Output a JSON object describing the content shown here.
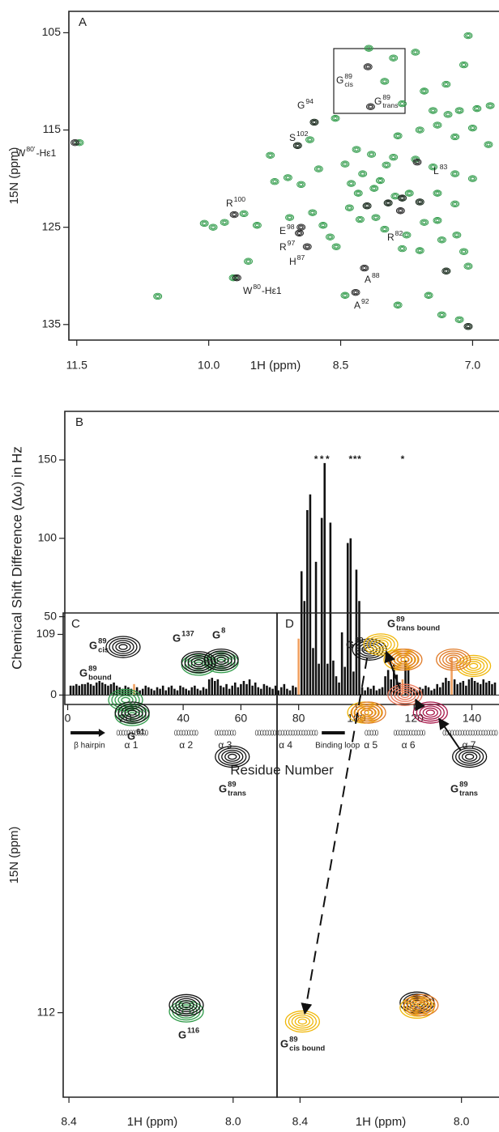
{
  "chart_data": [
    {
      "type": "scatter",
      "panel_label": "A",
      "xlabel": "1H (ppm)",
      "ylabel": "15N (ppm)",
      "xlim": [
        11.59,
        6.7
      ],
      "ylim": [
        136.6,
        102.8
      ],
      "xticks": [
        11.5,
        {
          "value": 10,
          "label": "10.0"
        },
        8.5,
        {
          "value": 7,
          "label": "7.0"
        }
      ],
      "yticks": [
        105,
        115,
        125,
        135
      ],
      "series": [
        {
          "color": "#2e9a48",
          "x": [
            11.47,
            10.58,
            9.82,
            9.72,
            8.99,
            8.8,
            8.56,
            8.45,
            8.38,
            8.3,
            8.2,
            8.12,
            8.05,
            7.96,
            7.88,
            7.8,
            7.72,
            8.25,
            8.32,
            8.15,
            7.98,
            7.9,
            8.4,
            8.28,
            8.1,
            8.0,
            7.75,
            7.6,
            7.55,
            7.4,
            7.35,
            7.18,
            7.1,
            7.05,
            7.3,
            7.6,
            7.8,
            8.55,
            8.62,
            8.7,
            8.82,
            8.95,
            9.1,
            9.3,
            9.45,
            9.08,
            8.18,
            7.9,
            7.65,
            7.05,
            7.1,
            7.3,
            7.55,
            8.0,
            7.8,
            7.45,
            7.28,
            7.15,
            6.95,
            6.8,
            7.6,
            7.4,
            7.2,
            7.0,
            6.82,
            7.85,
            7.65,
            7.45,
            7.2,
            7.0,
            7.4,
            7.2,
            8.75,
            9.25,
            8.85,
            7.5,
            7.35,
            7.15,
            7.05,
            7.85,
            8.45,
            9.55,
            9.95,
            10.05,
            9.6
          ],
          "y": [
            116.3,
            132.1,
            124.5,
            130.2,
            116.6,
            114.2,
            113.8,
            118.5,
            120.5,
            121.5,
            122.8,
            121.0,
            120.2,
            122.5,
            121.8,
            122.0,
            121.5,
            119.5,
            117.0,
            117.5,
            118.6,
            117.8,
            123.0,
            124.2,
            124.0,
            125.2,
            125.8,
            122.4,
            124.5,
            124.3,
            126.3,
            125.8,
            127.5,
            129.0,
            129.5,
            127.4,
            127.2,
            127.0,
            126.0,
            124.8,
            123.5,
            120.6,
            119.9,
            117.6,
            124.8,
            124.0,
            106.6,
            107.6,
            107.0,
            105.3,
            108.3,
            110.3,
            111.0,
            110.0,
            112.3,
            113.0,
            113.4,
            113.0,
            112.8,
            112.5,
            115.0,
            114.5,
            115.7,
            114.8,
            116.5,
            115.6,
            118.0,
            118.8,
            119.5,
            120.0,
            121.5,
            122.6,
            119.0,
            120.3,
            116.0,
            132.0,
            134.0,
            134.5,
            135.2,
            133.0,
            132.0,
            128.5,
            125.0,
            124.6,
            123.6
          ]
        },
        {
          "color": "#222222",
          "x": [
            11.52,
            9.71,
            9.68,
            8.99,
            8.8,
            8.19,
            8.16,
            8.23,
            8.33,
            8.88,
            8.97,
            8.95,
            7.82,
            7.63,
            7.6,
            7.3,
            7.05,
            7.8,
            8.2,
            7.96
          ],
          "y": [
            116.3,
            123.7,
            130.2,
            116.6,
            114.2,
            108.5,
            112.6,
            129.2,
            131.7,
            127.0,
            125.6,
            125.0,
            123.3,
            118.3,
            122.4,
            129.5,
            135.2,
            122.0,
            122.8,
            122.5
          ]
        }
      ],
      "annotations": [
        {
          "base": "W",
          "sup": "80'",
          "suffix": "-Hε1"
        },
        {
          "base": "G",
          "sup": "89",
          "sub": "cis"
        },
        {
          "base": "G",
          "sup": "89",
          "sub": "trans"
        },
        {
          "base": "G",
          "sup": "94"
        },
        {
          "base": "S",
          "sup": "102"
        },
        {
          "base": "R",
          "sup": "100"
        },
        {
          "base": "E",
          "sup": "98"
        },
        {
          "base": "R",
          "sup": "97"
        },
        {
          "base": "H",
          "sup": "87"
        },
        {
          "base": "R",
          "sup": "82"
        },
        {
          "base": "L",
          "sup": "83"
        },
        {
          "base": "A",
          "sup": "88"
        },
        {
          "base": "A",
          "sup": "92"
        },
        {
          "base": "W",
          "sup": "80",
          "suffix": "-Hε1"
        }
      ]
    },
    {
      "type": "bar",
      "panel_label": "B",
      "xlabel": "Residue Number",
      "ylabel": "Chemical Shift Difference (Δω) in Hz",
      "xlim": [
        -1,
        149.4
      ],
      "ylim": [
        -6,
        181
      ],
      "xticks": [
        0,
        20,
        40,
        60,
        80,
        100,
        120,
        140
      ],
      "yticks": [
        0,
        50,
        100,
        150
      ],
      "color": "#111111",
      "highlight_color": "#f0a060",
      "highlight_residues": [
        23,
        80,
        116,
        133
      ],
      "x": [
        1,
        2,
        3,
        4,
        5,
        6,
        7,
        8,
        9,
        10,
        11,
        12,
        13,
        14,
        15,
        16,
        17,
        18,
        19,
        20,
        21,
        22,
        23,
        24,
        25,
        26,
        27,
        28,
        29,
        30,
        31,
        32,
        33,
        34,
        35,
        36,
        37,
        38,
        39,
        40,
        41,
        42,
        43,
        44,
        45,
        46,
        47,
        48,
        49,
        50,
        51,
        52,
        53,
        54,
        55,
        56,
        57,
        58,
        59,
        60,
        61,
        62,
        63,
        64,
        65,
        66,
        67,
        68,
        69,
        70,
        71,
        72,
        73,
        74,
        75,
        76,
        77,
        78,
        79,
        80,
        81,
        82,
        83,
        84,
        85,
        86,
        87,
        88,
        89,
        90,
        91,
        92,
        93,
        94,
        95,
        96,
        97,
        98,
        99,
        100,
        101,
        102,
        103,
        104,
        105,
        106,
        107,
        108,
        109,
        110,
        111,
        112,
        113,
        114,
        115,
        116,
        117,
        118,
        119,
        120,
        121,
        122,
        123,
        124,
        125,
        126,
        127,
        128,
        129,
        130,
        131,
        132,
        133,
        134,
        135,
        136,
        137,
        138,
        139,
        140,
        141,
        142,
        143,
        144,
        145,
        146,
        147,
        148
      ],
      "values": [
        6,
        6,
        7,
        6,
        7,
        7,
        8,
        7,
        6,
        8,
        9,
        8,
        7,
        6,
        7,
        8,
        6,
        5,
        4,
        6,
        5,
        4,
        7,
        5,
        3,
        4,
        6,
        5,
        4,
        3,
        5,
        4,
        6,
        3,
        5,
        6,
        4,
        3,
        6,
        5,
        4,
        3,
        5,
        6,
        4,
        3,
        5,
        4,
        10,
        11,
        9,
        10,
        6,
        5,
        7,
        4,
        6,
        8,
        5,
        7,
        9,
        7,
        10,
        6,
        8,
        5,
        4,
        7,
        6,
        5,
        4,
        6,
        3,
        5,
        7,
        4,
        3,
        6,
        5,
        36,
        79,
        60,
        118,
        128,
        30,
        85,
        20,
        113,
        148,
        20,
        110,
        22,
        12,
        8,
        40,
        18,
        97,
        100,
        15,
        80,
        60,
        5,
        3,
        5,
        4,
        6,
        3,
        4,
        5,
        12,
        16,
        10,
        20,
        13,
        8,
        10,
        22,
        18,
        5,
        4,
        3,
        5,
        4,
        6,
        5,
        3,
        4,
        7,
        5,
        8,
        11,
        9,
        24,
        10,
        7,
        8,
        9,
        6,
        10,
        11,
        9,
        8,
        7,
        10,
        8,
        9,
        7,
        8
      ],
      "stars": [
        {
          "text": "*",
          "x": 86
        },
        {
          "text": "*",
          "x": 88
        },
        {
          "text": "*",
          "x": 90
        },
        {
          "text": "*",
          "x": 98
        },
        {
          "text": "*",
          "x": 99.5
        },
        {
          "text": "*",
          "x": 101
        },
        {
          "text": "*",
          "x": 116
        }
      ],
      "secondary_structure": [
        {
          "label": "β hairpin",
          "start": 1,
          "end": 13,
          "kind": "strand"
        },
        {
          "label": "α 1",
          "start": 17,
          "end": 27,
          "kind": "helix"
        },
        {
          "label": "α 2",
          "start": 37,
          "end": 45,
          "kind": "helix"
        },
        {
          "label": "α 3",
          "start": 51,
          "end": 58,
          "kind": "helix"
        },
        {
          "label": "α 4",
          "start": 65,
          "end": 86,
          "kind": "helix"
        },
        {
          "label": "Binding loop",
          "start": 88,
          "end": 96,
          "kind": "loop"
        },
        {
          "label": "α 5",
          "start": 103,
          "end": 107,
          "kind": "helix"
        },
        {
          "label": "α 6",
          "start": 113,
          "end": 123,
          "kind": "helix"
        },
        {
          "label": "α 7",
          "start": 130,
          "end": 148,
          "kind": "helix"
        }
      ]
    },
    {
      "type": "scatter",
      "panel_label": "C",
      "xlabel": "1H (ppm)",
      "ylabel": "15N (ppm)",
      "xlim": [
        8.414,
        7.893
      ],
      "ylim": [
        112.67,
        108.83
      ],
      "xticks": [
        8.4,
        {
          "value": 8,
          "label": "8.0"
        }
      ],
      "yticks": [
        109,
        112
      ],
      "series": [
        {
          "color": "#2e9a48",
          "x": [
            8.084,
            8.029,
            8.246,
            8.114,
            8.262
          ],
          "y": [
            109.24,
            109.22,
            109.64,
            111.99,
            109.52
          ]
        },
        {
          "color": "#111111",
          "x": [
            8.268,
            8.002,
            8.084,
            8.029,
            8.246,
            8.114
          ],
          "y": [
            109.1,
            109.97,
            109.22,
            109.2,
            109.62,
            111.94
          ]
        }
      ],
      "annotations": [
        {
          "base": "G",
          "sup": "89",
          "sub": "cis"
        },
        {
          "base": "G",
          "sup": "137"
        },
        {
          "base": "G",
          "sup": "8"
        },
        {
          "base": "G",
          "sup": "89",
          "sub": "bound",
          "color": "#2e9a48"
        },
        {
          "base": "G",
          "sup": "61"
        },
        {
          "base": "G",
          "sup": "89",
          "sub": "trans"
        },
        {
          "base": "G",
          "sup": "116"
        }
      ]
    },
    {
      "type": "scatter",
      "panel_label": "D",
      "xlabel": "1H (ppm)",
      "xlim": [
        8.457,
        7.907
      ],
      "ylim": [
        112.67,
        108.83
      ],
      "xticks": [
        8.4,
        {
          "value": 8,
          "label": "8.0"
        }
      ],
      "series": [
        {
          "color": "#111111",
          "x": [
            8.228,
            7.98,
            8.11
          ],
          "y": [
            109.12,
            109.97,
            111.92
          ]
        },
        {
          "color": "#f0b70a",
          "x": [
            8.2,
            8.394,
            8.15,
            7.97,
            8.24,
            8.11
          ],
          "y": [
            109.08,
            112.07,
            109.2,
            109.25,
            109.62,
            111.96
          ]
        },
        {
          "color": "#e07b28",
          "x": [
            8.14,
            8.02,
            8.23,
            8.1
          ],
          "y": [
            109.2,
            109.2,
            109.62,
            111.94
          ]
        },
        {
          "color": "#ec7a5c",
          "x": [
            8.14
          ],
          "y": [
            109.48
          ]
        },
        {
          "color": "#a8174a",
          "x": [
            8.077
          ],
          "y": [
            109.62
          ]
        }
      ],
      "annotations": [
        {
          "base": "G",
          "sup": "89",
          "sub": "cis"
        },
        {
          "base": "G",
          "sup": "89",
          "sub": "trans bound",
          "color": "#f0b70a"
        },
        {
          "base": "G",
          "sup": "89",
          "sub": "trans"
        },
        {
          "base": "G",
          "sup": "89",
          "sub": "cis bound",
          "color": "#f0b70a"
        }
      ]
    }
  ]
}
